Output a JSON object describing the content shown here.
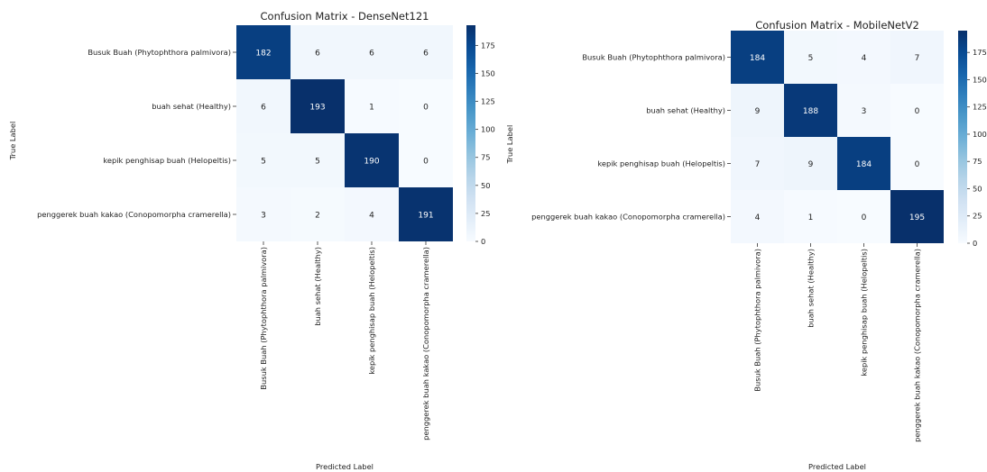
{
  "chart_data": [
    {
      "type": "heatmap",
      "title": "Confusion Matrix - DenseNet121",
      "xlabel": "Predicted Label",
      "ylabel": "True Label",
      "rows": [
        "Busuk Buah (Phytophthora palmivora)",
        "buah sehat (Healthy)",
        "kepik penghisap buah (Helopeltis)",
        "penggerek buah kakao (Conopomorpha cramerella)"
      ],
      "cols": [
        "Busuk Buah (Phytophthora palmivora)",
        "buah sehat (Healthy)",
        "kepik penghisap buah (Helopeltis)",
        "penggerek buah kakao (Conopomorpha cramerella)"
      ],
      "values": [
        [
          182,
          6,
          6,
          6
        ],
        [
          6,
          193,
          1,
          0
        ],
        [
          5,
          5,
          190,
          0
        ],
        [
          3,
          2,
          4,
          191
        ]
      ],
      "colorbar": {
        "range": [
          0,
          193
        ],
        "ticks": [
          0,
          25,
          50,
          75,
          100,
          125,
          150,
          175
        ]
      }
    },
    {
      "type": "heatmap",
      "title": "Confusion Matrix - MobileNetV2",
      "xlabel": "Predicted Label",
      "ylabel": "True Label",
      "rows": [
        "Busuk Buah (Phytophthora palmivora)",
        "buah sehat (Healthy)",
        "kepik penghisap buah (Helopeltis)",
        "penggerek buah kakao (Conopomorpha cramerella)"
      ],
      "cols": [
        "Busuk Buah (Phytophthora palmivora)",
        "buah sehat (Healthy)",
        "kepik penghisap buah (Helopeltis)",
        "penggerek buah kakao (Conopomorpha cramerella)"
      ],
      "values": [
        [
          184,
          5,
          4,
          7
        ],
        [
          9,
          188,
          3,
          0
        ],
        [
          7,
          9,
          184,
          0
        ],
        [
          4,
          1,
          0,
          195
        ]
      ],
      "colorbar": {
        "range": [
          0,
          195
        ],
        "ticks": [
          0,
          25,
          50,
          75,
          100,
          125,
          150,
          175
        ]
      }
    }
  ],
  "colors": {
    "low": "#f7fbff",
    "high": "#08306b"
  }
}
